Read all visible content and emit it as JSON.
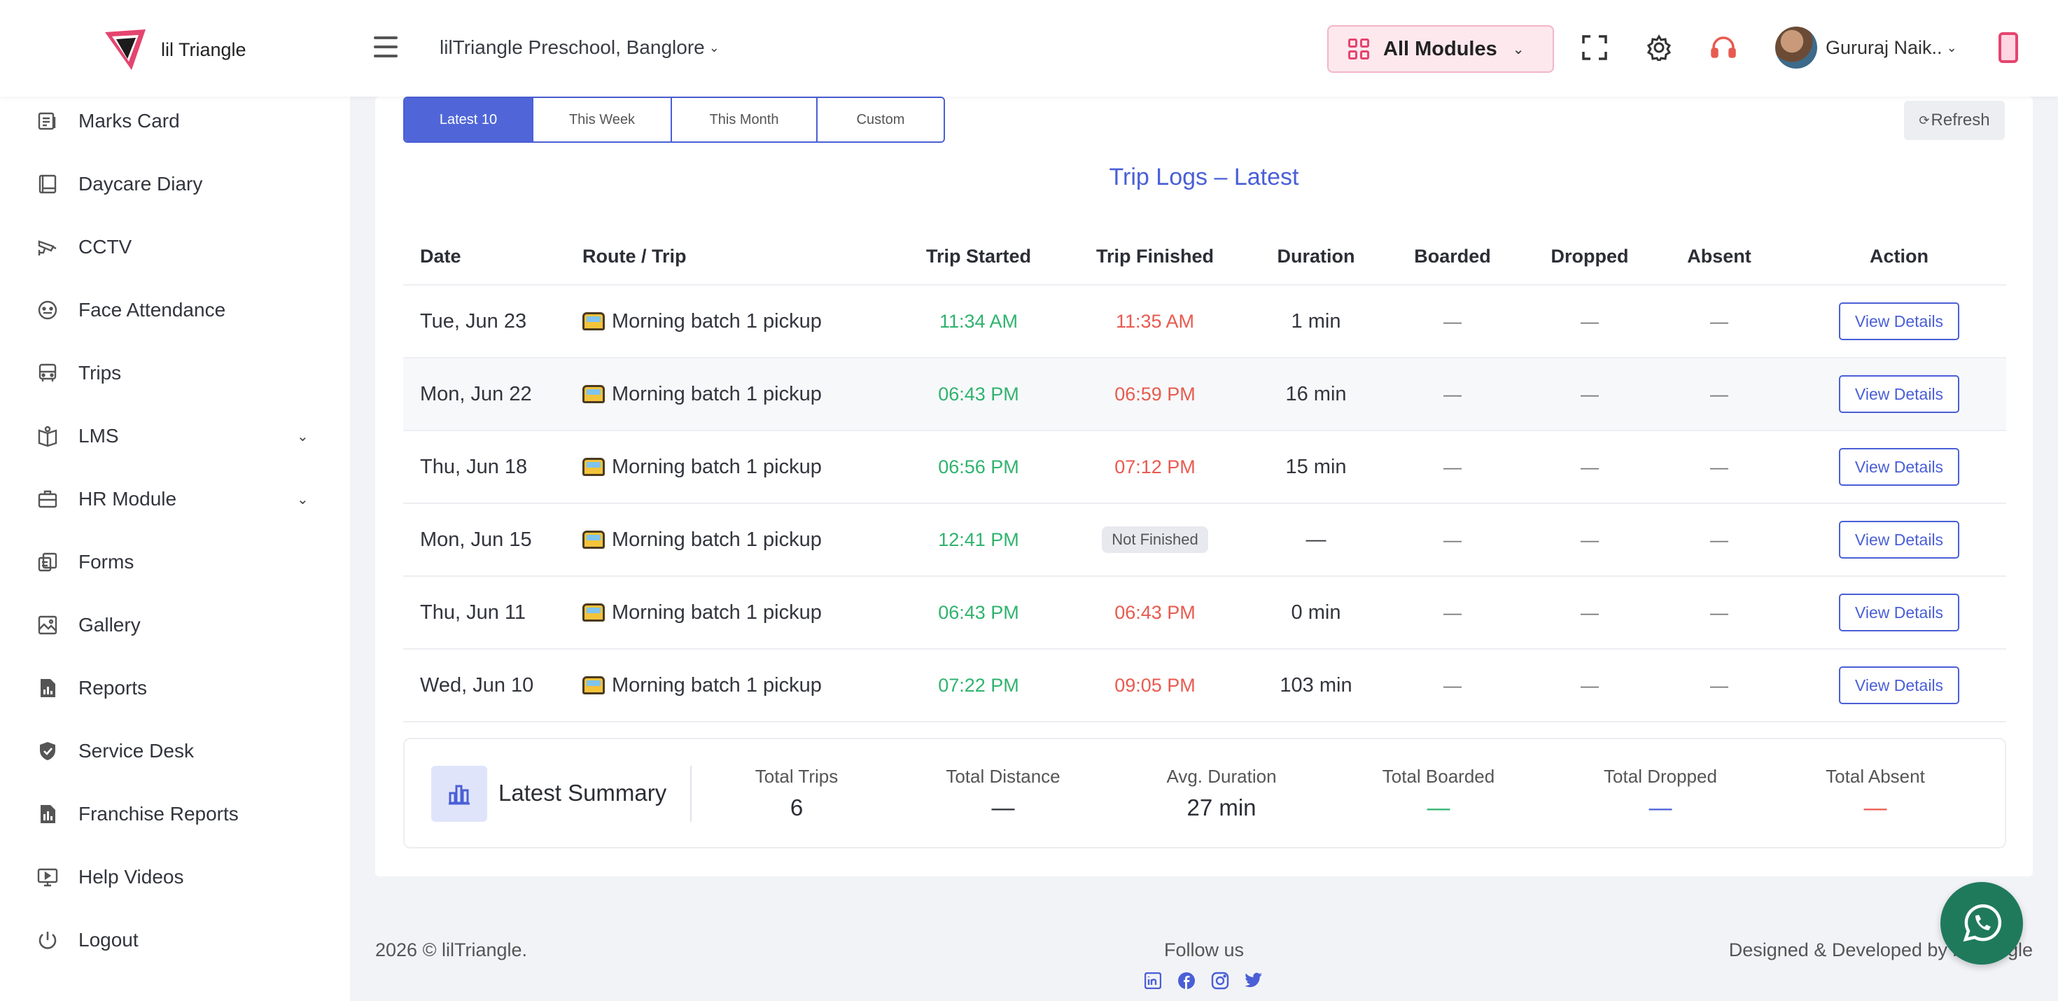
{
  "header": {
    "brand": "lil Triangle",
    "school": "lilTriangle Preschool, Banglore",
    "modules_label": "All Modules",
    "user_name": "Gururaj Naik.."
  },
  "sidebar": {
    "items": [
      {
        "label": "Marks Card"
      },
      {
        "label": "Daycare Diary"
      },
      {
        "label": "CCTV"
      },
      {
        "label": "Face Attendance"
      },
      {
        "label": "Trips"
      },
      {
        "label": "LMS"
      },
      {
        "label": "HR Module"
      },
      {
        "label": "Forms"
      },
      {
        "label": "Gallery"
      },
      {
        "label": "Reports"
      },
      {
        "label": "Service Desk"
      },
      {
        "label": "Franchise Reports"
      },
      {
        "label": "Help Videos"
      },
      {
        "label": "Logout"
      }
    ]
  },
  "filters": {
    "tabs": [
      "Latest 10",
      "This Week",
      "This Month",
      "Custom"
    ],
    "active": "Latest 10",
    "refresh_label": "Refresh"
  },
  "table": {
    "title": "Trip Logs – Latest",
    "headers": [
      "Date",
      "Route / Trip",
      "Trip Started",
      "Trip Finished",
      "Duration",
      "Boarded",
      "Dropped",
      "Absent",
      "Action"
    ],
    "rows": [
      {
        "date": "Tue, Jun 23",
        "route": "Morning batch 1 pickup",
        "started": "11:34 AM",
        "finished": "11:35 AM",
        "duration": "1 min",
        "boarded": "—",
        "dropped": "—",
        "absent": "—",
        "action": "View Details"
      },
      {
        "date": "Mon, Jun 22",
        "route": "Morning batch 1 pickup",
        "started": "06:43 PM",
        "finished": "06:59 PM",
        "duration": "16 min",
        "boarded": "—",
        "dropped": "—",
        "absent": "—",
        "action": "View Details"
      },
      {
        "date": "Thu, Jun 18",
        "route": "Morning batch 1 pickup",
        "started": "06:56 PM",
        "finished": "07:12 PM",
        "duration": "15 min",
        "boarded": "—",
        "dropped": "—",
        "absent": "—",
        "action": "View Details"
      },
      {
        "date": "Mon, Jun 15",
        "route": "Morning batch 1 pickup",
        "started": "12:41 PM",
        "finished": "Not Finished",
        "duration": "—",
        "boarded": "—",
        "dropped": "—",
        "absent": "—",
        "action": "View Details"
      },
      {
        "date": "Thu, Jun 11",
        "route": "Morning batch 1 pickup",
        "started": "06:43 PM",
        "finished": "06:43 PM",
        "duration": "0 min",
        "boarded": "—",
        "dropped": "—",
        "absent": "—",
        "action": "View Details"
      },
      {
        "date": "Wed, Jun 10",
        "route": "Morning batch 1 pickup",
        "started": "07:22 PM",
        "finished": "09:05 PM",
        "duration": "103 min",
        "boarded": "—",
        "dropped": "—",
        "absent": "—",
        "action": "View Details"
      }
    ]
  },
  "summary": {
    "title": "Latest Summary",
    "stats": [
      {
        "label": "Total Trips",
        "value": "6"
      },
      {
        "label": "Total Distance",
        "value": "—"
      },
      {
        "label": "Avg. Duration",
        "value": "27 min"
      },
      {
        "label": "Total Boarded",
        "value": "—",
        "color": "#2fb36e"
      },
      {
        "label": "Total Dropped",
        "value": "—",
        "color": "#4a5fd6"
      },
      {
        "label": "Total Absent",
        "value": "—",
        "color": "#e85a4f"
      }
    ]
  },
  "footer": {
    "copyright": "2026 © lilTriangle.",
    "follow": "Follow us",
    "designed": "Designed & Developed by lilTriangle"
  },
  "colors": {
    "accent": "#4a5fd6",
    "brand_pink": "#e4456f",
    "started": "#2fb36e",
    "finished": "#e85a4f",
    "whatsapp": "#1f7a5c"
  }
}
